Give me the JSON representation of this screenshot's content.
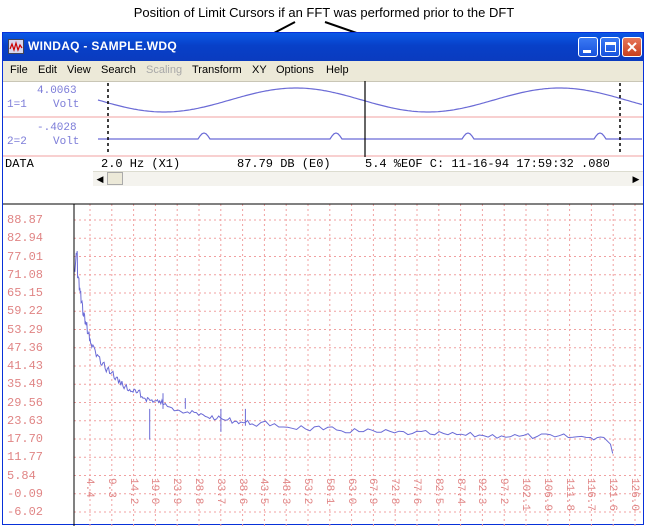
{
  "annotation": {
    "text": "Position of Limit Cursors if an FFT was performed prior to the DFT"
  },
  "window": {
    "title": "WINDAQ - SAMPLE.WDQ"
  },
  "menu": [
    {
      "label": "File",
      "enabled": true
    },
    {
      "label": "Edit",
      "enabled": true
    },
    {
      "label": "View",
      "enabled": true
    },
    {
      "label": "Search",
      "enabled": true
    },
    {
      "label": "Scaling",
      "enabled": false
    },
    {
      "label": "Transform",
      "enabled": true
    },
    {
      "label": "XY",
      "enabled": true
    },
    {
      "label": "Options",
      "enabled": true
    },
    {
      "label": "Help",
      "enabled": true
    }
  ],
  "channels": [
    {
      "value": "4.0063",
      "id": "1=1",
      "unit": "Volt"
    },
    {
      "value": "-.4028",
      "id": "2=2",
      "unit": "Volt"
    }
  ],
  "status": {
    "mode": "DATA",
    "freq": "2.0 Hz (X1)",
    "db": "87.79 DB (E0)",
    "eof": "5.4 %EOF C: 11-16-94 17:59:32 .080"
  },
  "icons": {
    "app": "windaq-app-icon",
    "minimize": "minimize-icon",
    "maximize": "maximize-icon",
    "close": "close-icon",
    "scroll_left": "scroll-left-arrow-icon",
    "scroll_right": "scroll-right-arrow-icon"
  },
  "colors": {
    "titlebar": "#0a4ed6",
    "trace": "#6b6bd6",
    "grid": "#f0a0a0",
    "tick_label": "#e08585"
  },
  "chart_data": {
    "type": "line",
    "title": "",
    "xlabel": "",
    "ylabel": "",
    "y_tick_labels": [
      "88.87",
      "82.94",
      "77.01",
      "71.08",
      "65.15",
      "59.22",
      "53.29",
      "47.36",
      "41.43",
      "35.49",
      "29.56",
      "23.63",
      "17.70",
      "11.77",
      "5.84",
      "-0.09",
      "-6.02"
    ],
    "x_tick_labels": [
      "4.4",
      "9.3",
      "14.2",
      "19.0",
      "23.9",
      "28.8",
      "33.7",
      "38.6",
      "43.5",
      "48.3",
      "53.2",
      "58.1",
      "63.0",
      "67.9",
      "72.8",
      "77.6",
      "82.5",
      "87.4",
      "92.3",
      "97.2",
      "102.1",
      "106.9",
      "111.8",
      "116.7",
      "121.6",
      "126.0"
    ],
    "xlim": [
      0.0,
      126.0
    ],
    "ylim": [
      -6.02,
      88.87
    ],
    "grid": true,
    "series": [
      {
        "x": [
          0.2,
          0.5,
          0.8,
          1.2,
          1.6,
          2.0,
          2.5,
          3.0,
          3.5,
          4.0,
          5.0,
          6.0,
          7.0,
          8.0,
          9.0,
          10.0,
          11.0,
          12.0,
          13.0,
          14.0,
          15.0,
          16.0,
          17.0,
          18.0,
          19.0,
          20.0,
          22.0,
          24.0,
          26.0,
          28.0,
          30.0,
          32.0,
          34.0,
          36.0,
          38.0,
          40.0,
          44.0,
          48.0,
          52.0,
          56.0,
          60.0,
          64.0,
          68.0,
          72.0,
          76.0,
          80.0,
          84.0,
          88.0,
          92.0,
          96.0,
          100.0,
          104.0,
          108.0,
          112.0,
          116.0,
          119.0,
          120.5,
          121.0
        ],
        "y": [
          72.0,
          78.0,
          70.0,
          66.0,
          62.0,
          58.0,
          55.0,
          52.0,
          49.5,
          47.5,
          44.5,
          42.0,
          40.5,
          39.0,
          37.5,
          36.0,
          34.8,
          33.6,
          33.2,
          32.7,
          31.3,
          30.8,
          30.3,
          30.0,
          29.6,
          28.8,
          27.8,
          26.6,
          26.0,
          25.4,
          24.8,
          24.2,
          23.8,
          23.4,
          23.0,
          22.6,
          22.0,
          21.5,
          21.0,
          20.7,
          20.4,
          20.1,
          19.9,
          19.7,
          19.5,
          19.3,
          19.1,
          18.9,
          18.8,
          18.7,
          18.6,
          18.5,
          18.4,
          18.3,
          18.2,
          18.2,
          16.0,
          13.0
        ]
      }
    ]
  }
}
